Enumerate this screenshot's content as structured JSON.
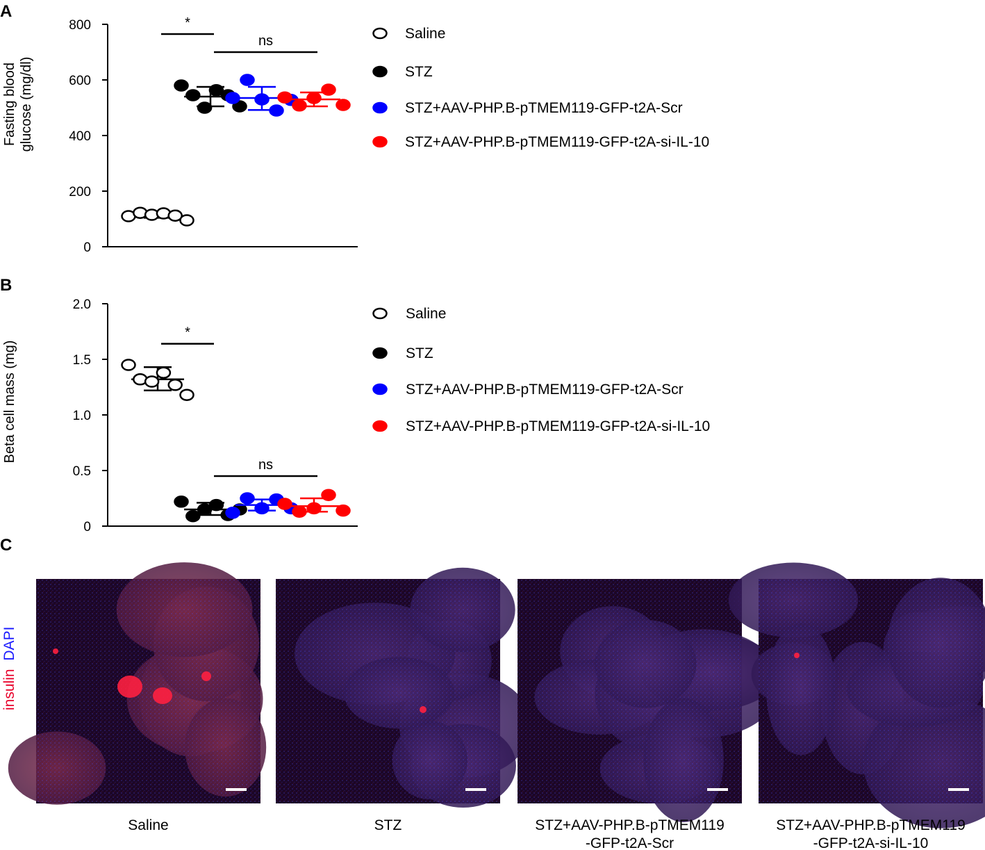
{
  "panels": {
    "A": "A",
    "B": "B",
    "C": "C"
  },
  "colors": {
    "Saline": "#ffffff",
    "STZ": "#000000",
    "Scr": "#0000ff",
    "siIL10": "#ff0000",
    "micrograph_bg": "#2a0a3a",
    "insulin": "#ff2040",
    "dapi": "#3030ff"
  },
  "chart_data": [
    {
      "id": "A",
      "type": "scatter",
      "ylabel": "Fasting blood glucose (mg/dl)",
      "ylabel_lines": [
        "Fasting blood",
        "glucose (mg/dl)"
      ],
      "ylim": [
        0,
        800
      ],
      "yticks": [
        "0",
        "200",
        "400",
        "600",
        "800"
      ],
      "ytick_values": [
        0,
        200,
        400,
        600,
        800
      ],
      "legend": [
        "Saline",
        "STZ",
        "STZ+AAV-PHP.B-pTMEM119-GFP-t2A-Scr",
        "STZ+AAV-PHP.B-pTMEM119-GFP-t2A-si-IL-10"
      ],
      "legend_placement": "right",
      "series": [
        {
          "name": "Saline",
          "color": "Saline",
          "values": [
            110,
            122,
            115,
            120,
            112,
            95
          ],
          "mean": 110,
          "sd_low": 104,
          "sd_high": 117
        },
        {
          "name": "STZ",
          "color": "STZ",
          "values": [
            580,
            545,
            500,
            563,
            545,
            505
          ],
          "mean": 540,
          "sd_low": 505,
          "sd_high": 575
        },
        {
          "name": "STZ+AAV-PHP.B-pTMEM119-GFP-t2A-Scr",
          "color": "Scr",
          "values": [
            535,
            600,
            530,
            490,
            528
          ],
          "mean": 535,
          "sd_low": 492,
          "sd_high": 575
        },
        {
          "name": "STZ+AAV-PHP.B-pTMEM119-GFP-t2A-si-IL-10",
          "color": "siIL10",
          "values": [
            537,
            508,
            535,
            565,
            510
          ],
          "mean": 530,
          "sd_low": 505,
          "sd_high": 555
        }
      ],
      "brackets": [
        {
          "label": "*",
          "from": 0,
          "to": 1,
          "y": 765
        },
        {
          "label": "ns",
          "from": 1,
          "to": 3,
          "y": 700
        }
      ]
    },
    {
      "id": "B",
      "type": "scatter",
      "ylabel": "Beta cell mass (mg)",
      "ylabel_lines": [
        "Beta cell mass (mg)"
      ],
      "ylim": [
        0,
        2.0
      ],
      "yticks": [
        "0",
        "0.5",
        "1.0",
        "1.5",
        "2.0"
      ],
      "ytick_values": [
        0,
        0.5,
        1.0,
        1.5,
        2.0
      ],
      "legend": [
        "Saline",
        "STZ",
        "STZ+AAV-PHP.B-pTMEM119-GFP-t2A-Scr",
        "STZ+AAV-PHP.B-pTMEM119-GFP-t2A-si-IL-10"
      ],
      "legend_placement": "right",
      "series": [
        {
          "name": "Saline",
          "color": "Saline",
          "values": [
            1.45,
            1.32,
            1.3,
            1.38,
            1.27,
            1.18
          ],
          "mean": 1.32,
          "sd_low": 1.22,
          "sd_high": 1.43
        },
        {
          "name": "STZ",
          "color": "STZ",
          "values": [
            0.22,
            0.09,
            0.15,
            0.19,
            0.1,
            0.15
          ],
          "mean": 0.15,
          "sd_low": 0.1,
          "sd_high": 0.21
        },
        {
          "name": "STZ+AAV-PHP.B-pTMEM119-GFP-t2A-Scr",
          "color": "Scr",
          "values": [
            0.12,
            0.25,
            0.16,
            0.24,
            0.16
          ],
          "mean": 0.19,
          "sd_low": 0.14,
          "sd_high": 0.24
        },
        {
          "name": "STZ+AAV-PHP.B-pTMEM119-GFP-t2A-si-IL-10",
          "color": "siIL10",
          "values": [
            0.2,
            0.13,
            0.16,
            0.28,
            0.14
          ],
          "mean": 0.18,
          "sd_low": 0.13,
          "sd_high": 0.25
        }
      ],
      "brackets": [
        {
          "label": "*",
          "from": 0,
          "to": 1,
          "y": 1.64
        },
        {
          "label": "ns",
          "from": 1,
          "to": 3,
          "y": 0.45
        }
      ]
    }
  ],
  "micrographs": {
    "side_label_red": "insulin",
    "side_label_blue": "DAPI",
    "images": [
      {
        "caption": [
          "Saline"
        ],
        "islets": 4
      },
      {
        "caption": [
          "STZ"
        ],
        "islets": 1
      },
      {
        "caption": [
          "STZ+AAV-PHP.B-pTMEM119",
          "-GFP-t2A-Scr"
        ],
        "islets": 0
      },
      {
        "caption": [
          "STZ+AAV-PHP.B-pTMEM119",
          "-GFP-t2A-si-IL-10"
        ],
        "islets": 1
      }
    ]
  }
}
